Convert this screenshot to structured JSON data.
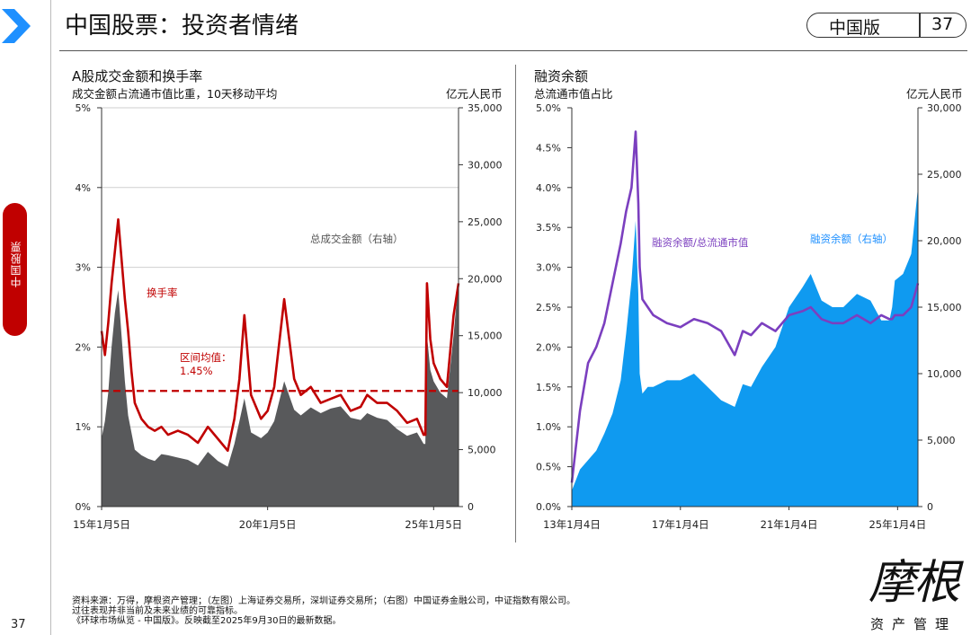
{
  "header": {
    "title": "中国股票：投资者情绪",
    "edition": "中国版",
    "page": "37"
  },
  "sidebar": {
    "tab_label": "中国股票"
  },
  "footer": {
    "page_number": "37",
    "notes": [
      "资料来源：万得，摩根资产管理；（左图）上海证券交易所，深圳证券交易所；（右图）中国证券金融公司，中证指数有限公司。",
      "过往表现并非当前及未来业绩的可靠指标。",
      "《环球市场纵览 - 中国版》。反映截至2025年9月30日的最新数据。"
    ]
  },
  "logo": {
    "name": "摩根",
    "sub": "资产管理"
  },
  "colors": {
    "red": "#c00000",
    "gray_area": "#58595b",
    "blue_area": "#0f9af0",
    "purple": "#7b3fbf",
    "accent_blue": "#1e90ff"
  },
  "chart_data": [
    {
      "type": "area",
      "title": "A股成交金额和换手率",
      "subtitle": "成交金额占流通市值比重，10天移动平均",
      "y_right_unit": "亿元人民币",
      "x_ticks": [
        "15年1月5日",
        "20年1月5日",
        "25年1月5日"
      ],
      "y_left_ticks": [
        "0%",
        "1%",
        "2%",
        "3%",
        "4%",
        "5%"
      ],
      "y_left_range": [
        0,
        5
      ],
      "y_right_ticks": [
        "0",
        "5,000",
        "10,000",
        "15,000",
        "20,000",
        "25,000",
        "30,000",
        "35,000"
      ],
      "y_right_range": [
        0,
        35000
      ],
      "x": [
        2015.0,
        2015.1,
        2015.2,
        2015.3,
        2015.4,
        2015.5,
        2015.6,
        2015.7,
        2015.8,
        2015.9,
        2016.0,
        2016.2,
        2016.4,
        2016.6,
        2016.8,
        2017.0,
        2017.3,
        2017.6,
        2017.9,
        2018.2,
        2018.5,
        2018.8,
        2019.0,
        2019.15,
        2019.3,
        2019.5,
        2019.8,
        2020.0,
        2020.2,
        2020.5,
        2020.8,
        2021.0,
        2021.3,
        2021.6,
        2021.9,
        2022.2,
        2022.5,
        2022.8,
        2023.0,
        2023.3,
        2023.6,
        2023.9,
        2024.2,
        2024.5,
        2024.7,
        2024.75,
        2024.8,
        2024.9,
        2025.0,
        2025.2,
        2025.4,
        2025.6,
        2025.75
      ],
      "series": [
        {
          "name": "换手率",
          "axis": "left",
          "values": [
            2.2,
            1.9,
            2.3,
            2.8,
            3.2,
            3.6,
            3.1,
            2.6,
            2.2,
            1.7,
            1.3,
            1.1,
            1.0,
            0.95,
            1.0,
            0.9,
            0.95,
            0.9,
            0.8,
            1.0,
            0.85,
            0.7,
            1.1,
            1.6,
            2.4,
            1.4,
            1.1,
            1.2,
            1.5,
            2.6,
            1.6,
            1.4,
            1.5,
            1.3,
            1.35,
            1.4,
            1.2,
            1.25,
            1.4,
            1.3,
            1.3,
            1.2,
            1.05,
            1.1,
            0.9,
            0.9,
            2.8,
            2.1,
            1.8,
            1.6,
            1.5,
            2.4,
            2.8
          ]
        },
        {
          "name": "总成交金额（右轴）",
          "axis": "right",
          "values": [
            6000,
            7500,
            10000,
            14000,
            17000,
            19000,
            15000,
            11000,
            8000,
            6500,
            5000,
            4500,
            4200,
            4000,
            4600,
            4500,
            4300,
            4100,
            3600,
            4800,
            4000,
            3500,
            5500,
            7500,
            9500,
            6500,
            6000,
            6500,
            7500,
            11000,
            8500,
            8000,
            8700,
            8200,
            8600,
            8800,
            7800,
            7600,
            8200,
            7800,
            7600,
            6800,
            6200,
            6500,
            5500,
            5500,
            15000,
            12000,
            11000,
            10000,
            9500,
            15000,
            20000
          ]
        }
      ],
      "annotations": [
        "总成交金额（右轴）",
        "换手率",
        "区间均值：",
        "1.45%"
      ],
      "reference_line": {
        "label": "区间均值：1.45%",
        "value": 1.45,
        "style": "dashed",
        "axis": "left"
      }
    },
    {
      "type": "area",
      "title": "融资余额",
      "subtitle": "总流通市值占比",
      "y_right_unit": "亿元人民币",
      "x_ticks": [
        "13年1月4日",
        "17年1月4日",
        "21年1月4日",
        "25年1月4日"
      ],
      "y_left_ticks": [
        "0.0%",
        "0.5%",
        "1.0%",
        "1.5%",
        "2.0%",
        "2.5%",
        "3.0%",
        "3.5%",
        "4.0%",
        "4.5%",
        "5.0%"
      ],
      "y_left_range": [
        0,
        5
      ],
      "y_right_ticks": [
        "0",
        "5,000",
        "10,000",
        "15,000",
        "20,000",
        "25,000",
        "30,000"
      ],
      "y_right_range": [
        0,
        30000
      ],
      "x": [
        2013.0,
        2013.3,
        2013.6,
        2013.9,
        2014.2,
        2014.5,
        2014.8,
        2015.0,
        2015.2,
        2015.35,
        2015.45,
        2015.5,
        2015.6,
        2015.8,
        2016.0,
        2016.5,
        2017.0,
        2017.5,
        2018.0,
        2018.5,
        2019.0,
        2019.3,
        2019.6,
        2020.0,
        2020.5,
        2021.0,
        2021.5,
        2021.8,
        2022.2,
        2022.6,
        2023.0,
        2023.5,
        2024.0,
        2024.4,
        2024.7,
        2024.8,
        2024.9,
        2025.2,
        2025.5,
        2025.75
      ],
      "series": [
        {
          "name": "融资余额/总流通市值",
          "axis": "left",
          "values": [
            0.3,
            1.2,
            1.8,
            2.0,
            2.3,
            2.8,
            3.3,
            3.7,
            4.0,
            4.7,
            3.8,
            3.0,
            2.6,
            2.5,
            2.4,
            2.3,
            2.25,
            2.35,
            2.3,
            2.2,
            1.9,
            2.2,
            2.15,
            2.3,
            2.2,
            2.4,
            2.45,
            2.5,
            2.35,
            2.3,
            2.3,
            2.4,
            2.3,
            2.4,
            2.35,
            2.35,
            2.4,
            2.4,
            2.5,
            2.8
          ]
        },
        {
          "name": "融资余额（右轴）",
          "axis": "right",
          "values": [
            1200,
            2800,
            3500,
            4200,
            5500,
            7000,
            9500,
            13000,
            17000,
            21500,
            16000,
            10000,
            8500,
            9000,
            9000,
            9500,
            9500,
            10000,
            9000,
            8000,
            7500,
            9200,
            9000,
            10500,
            12000,
            15000,
            16500,
            17500,
            15500,
            15000,
            15000,
            16000,
            15500,
            14000,
            14000,
            15000,
            17000,
            17500,
            19000,
            24000
          ]
        }
      ],
      "annotations": [
        "融资余额/总流通市值",
        "融资余额（右轴）"
      ]
    }
  ]
}
